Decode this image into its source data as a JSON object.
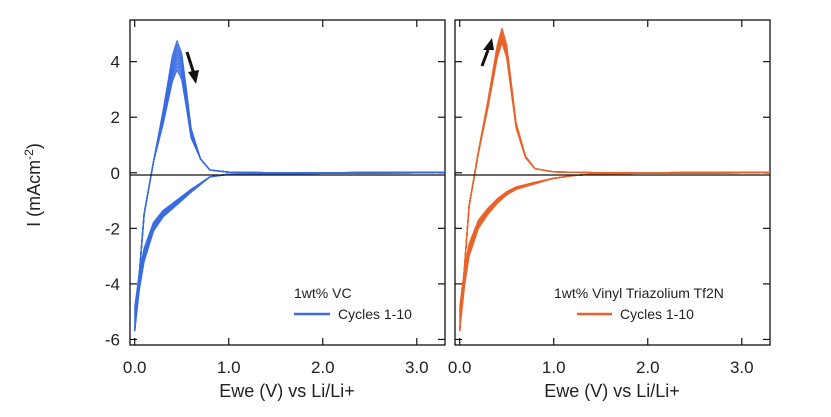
{
  "ylabel_main": "I (mAcm",
  "ylabel_sup": "-2",
  "ylabel_close": ")",
  "colors": {
    "blue": "#3a6be0",
    "orange": "#e8642a",
    "axis": "#111111"
  },
  "chart_data": [
    {
      "type": "line",
      "panel": "left",
      "xlabel": "Ewe (V) vs Li/Li+",
      "ylabel": "I (mAcm-2)",
      "xlim": [
        -0.05,
        3.3
      ],
      "ylim": [
        -6.2,
        5.5
      ],
      "xticks": [
        0.0,
        1.0,
        2.0,
        3.0
      ],
      "xtick_labels": [
        "0.0",
        "1.0",
        "2.0",
        "3.0"
      ],
      "yticks": [
        4,
        2,
        0,
        -2,
        -4,
        -6
      ],
      "ytick_labels": [
        "4",
        "2",
        "0",
        "-2",
        "-4",
        "-6"
      ],
      "legend_title": "1wt% VC",
      "legend_entry": "Cycles 1-10",
      "legend_position": "bottom-right",
      "arrow": "down (peak current decreasing with cycling)",
      "series": [
        {
          "name": "Cycles 1-10 (anodic)",
          "x": [
            0.0,
            0.1,
            0.2,
            0.3,
            0.4,
            0.45,
            0.5,
            0.55,
            0.6,
            0.7,
            0.8,
            1.0,
            1.5,
            2.0,
            3.0,
            3.3
          ],
          "y": [
            -5.7,
            -1.5,
            0.4,
            2.2,
            4.2,
            4.75,
            4.3,
            3.0,
            1.6,
            0.5,
            0.1,
            0.02,
            0.0,
            0.0,
            0.02,
            0.02
          ]
        },
        {
          "name": "Cycles 1-10 (cathodic)",
          "x": [
            3.3,
            3.0,
            2.0,
            1.5,
            1.0,
            0.8,
            0.6,
            0.5,
            0.4,
            0.3,
            0.2,
            0.1,
            0.05,
            0.0
          ],
          "y": [
            0.02,
            0.0,
            -0.02,
            -0.03,
            -0.05,
            -0.15,
            -0.7,
            -1.0,
            -1.3,
            -1.6,
            -2.1,
            -3.2,
            -4.2,
            -5.7
          ]
        }
      ]
    },
    {
      "type": "line",
      "panel": "right",
      "xlabel": "Ewe (V) vs Li/Li+",
      "ylabel": "",
      "xlim": [
        -0.05,
        3.3
      ],
      "ylim": [
        -6.2,
        5.5
      ],
      "xticks": [
        0.0,
        1.0,
        2.0,
        3.0
      ],
      "xtick_labels": [
        "0.0",
        "1.0",
        "2.0",
        "3.0"
      ],
      "yticks": [
        4,
        2,
        0,
        -2,
        -4,
        -6
      ],
      "ytick_labels": [],
      "legend_title": "1wt% Vinyl Triazolium Tf2N",
      "legend_entry": "Cycles 1-10",
      "legend_position": "bottom-right",
      "arrow": "up (peak current increasing with cycling)",
      "series": [
        {
          "name": "Cycles 1-10 (anodic)",
          "x": [
            0.0,
            0.1,
            0.2,
            0.3,
            0.4,
            0.45,
            0.5,
            0.55,
            0.6,
            0.7,
            0.8,
            1.0,
            1.5,
            2.0,
            3.0,
            3.3
          ],
          "y": [
            -5.7,
            -1.2,
            0.8,
            2.6,
            4.6,
            5.2,
            4.6,
            3.2,
            1.8,
            0.6,
            0.15,
            0.03,
            0.0,
            0.0,
            0.02,
            0.02
          ]
        },
        {
          "name": "Cycles 1-10 (cathodic)",
          "x": [
            3.3,
            3.0,
            2.0,
            1.5,
            1.2,
            1.0,
            0.8,
            0.6,
            0.5,
            0.4,
            0.3,
            0.2,
            0.1,
            0.05,
            0.0
          ],
          "y": [
            0.02,
            0.0,
            -0.02,
            -0.03,
            -0.1,
            -0.2,
            -0.4,
            -0.6,
            -0.8,
            -1.1,
            -1.5,
            -2.0,
            -3.0,
            -4.1,
            -5.7
          ]
        }
      ]
    }
  ]
}
